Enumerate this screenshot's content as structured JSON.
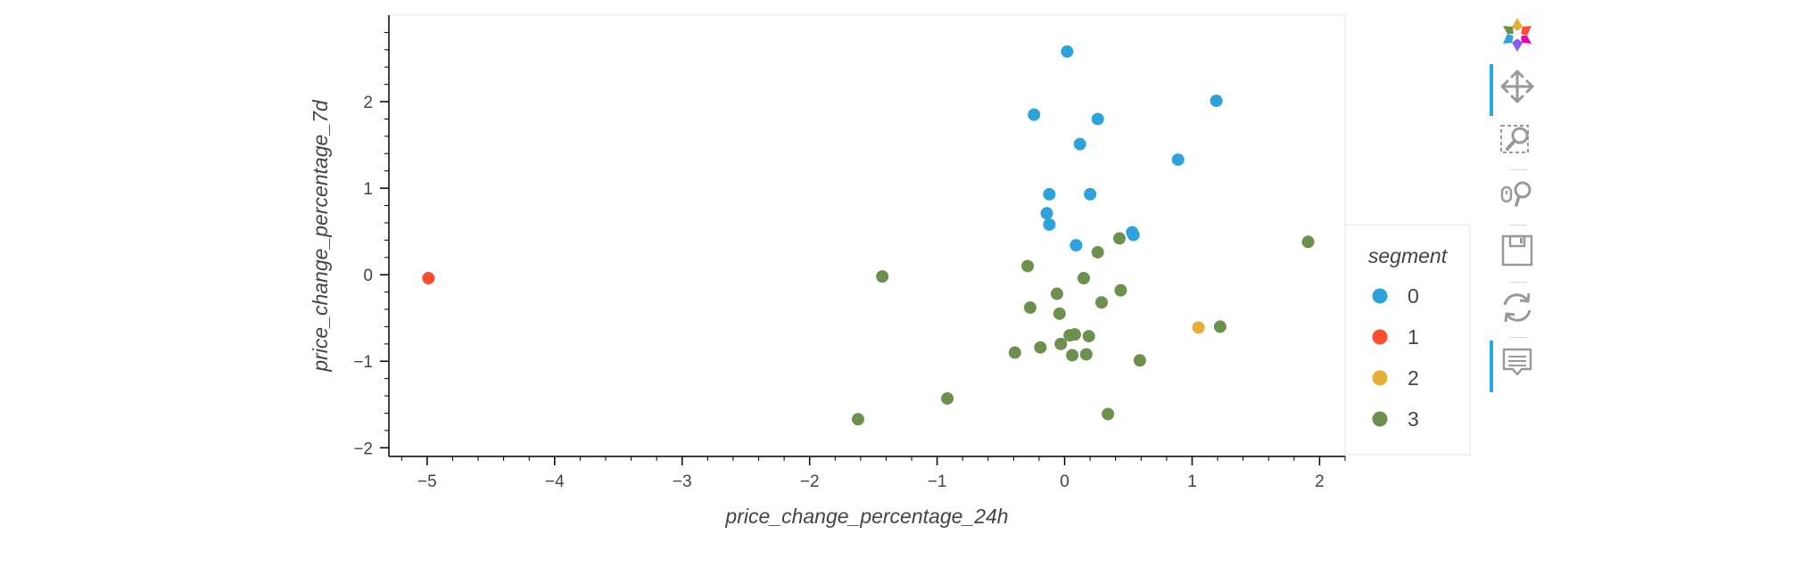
{
  "chart_data": {
    "type": "scatter",
    "xlabel": "price_change_percentage_24h",
    "ylabel": "price_change_percentage_7d",
    "xlim": [
      -5.3,
      2.2
    ],
    "ylim": [
      -2.1,
      3.0
    ],
    "x_ticks": [
      -5,
      -4,
      -3,
      -2,
      -1,
      0,
      1,
      2
    ],
    "y_ticks": [
      -2,
      -1,
      0,
      1,
      2
    ],
    "x_tick_labels": [
      "−5",
      "−4",
      "−3",
      "−2",
      "−1",
      "0",
      "1",
      "2"
    ],
    "y_tick_labels": [
      "−2",
      "−1",
      "0",
      "1",
      "2"
    ],
    "grid": false,
    "legend_title": "segment",
    "legend_position": "right",
    "series": [
      {
        "name": "0",
        "color": "#30a2da",
        "points": [
          [
            0.02,
            2.58
          ],
          [
            1.19,
            2.01
          ],
          [
            -0.24,
            1.85
          ],
          [
            0.26,
            1.8
          ],
          [
            0.12,
            1.51
          ],
          [
            0.89,
            1.33
          ],
          [
            -0.12,
            0.93
          ],
          [
            0.2,
            0.93
          ],
          [
            -0.14,
            0.71
          ],
          [
            -0.12,
            0.58
          ],
          [
            0.53,
            0.49
          ],
          [
            0.54,
            0.46
          ],
          [
            0.09,
            0.34
          ]
        ]
      },
      {
        "name": "1",
        "color": "#fc4f30",
        "points": [
          [
            -4.99,
            -0.04
          ]
        ]
      },
      {
        "name": "2",
        "color": "#e5ae38",
        "points": [
          [
            1.05,
            -0.61
          ]
        ]
      },
      {
        "name": "3",
        "color": "#6d904f",
        "points": [
          [
            -1.43,
            -0.02
          ],
          [
            1.91,
            0.38
          ],
          [
            0.43,
            0.42
          ],
          [
            0.26,
            0.26
          ],
          [
            -0.29,
            0.1
          ],
          [
            0.15,
            -0.04
          ],
          [
            -0.06,
            -0.22
          ],
          [
            0.44,
            -0.18
          ],
          [
            0.29,
            -0.32
          ],
          [
            -0.27,
            -0.38
          ],
          [
            -0.04,
            -0.45
          ],
          [
            1.22,
            -0.6
          ],
          [
            0.04,
            -0.7
          ],
          [
            0.08,
            -0.69
          ],
          [
            0.19,
            -0.71
          ],
          [
            -0.03,
            -0.8
          ],
          [
            -0.19,
            -0.84
          ],
          [
            -0.39,
            -0.9
          ],
          [
            0.06,
            -0.93
          ],
          [
            0.17,
            -0.92
          ],
          [
            0.59,
            -0.99
          ],
          [
            -0.92,
            -1.43
          ],
          [
            0.34,
            -1.61
          ],
          [
            -1.62,
            -1.67
          ]
        ]
      }
    ]
  },
  "toolbar": {
    "logo": "bokeh-logo-icon",
    "tools": [
      "pan-icon",
      "box-zoom-icon",
      "wheel-zoom-icon",
      "save-icon",
      "reset-icon",
      "hover-icon"
    ]
  }
}
